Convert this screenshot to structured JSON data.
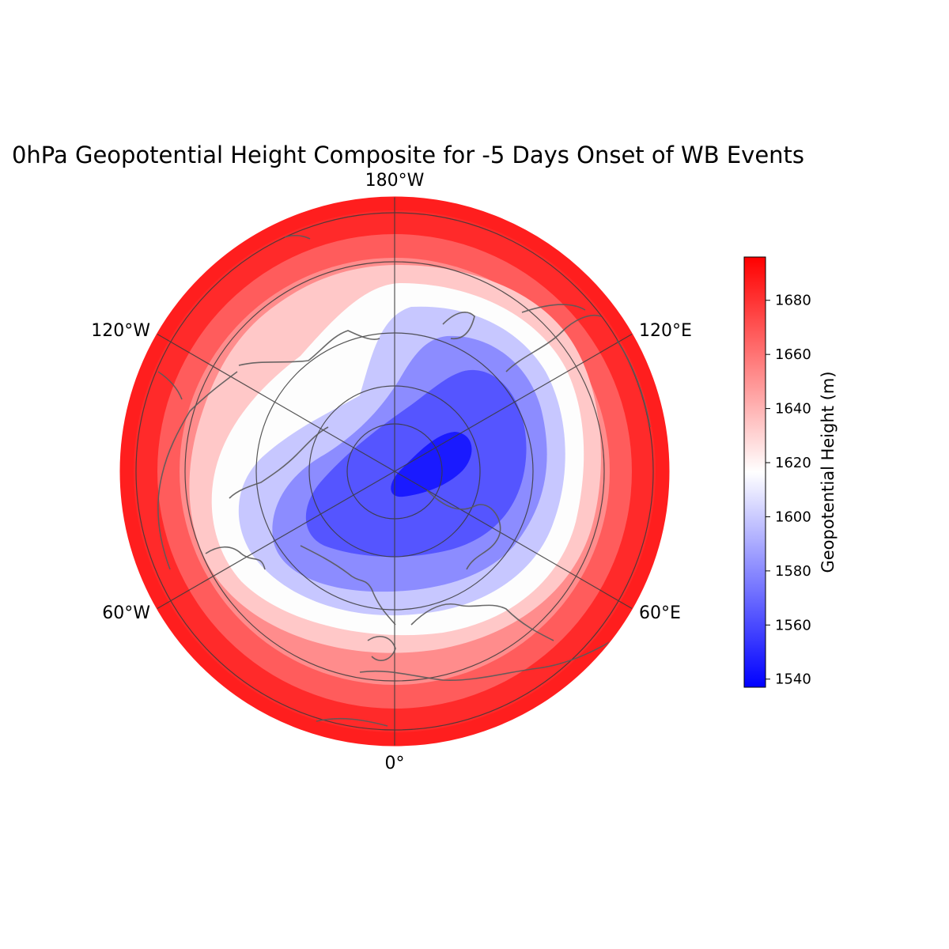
{
  "title": "0hPa Geopotential Height Composite for -5 Days Onset of WB Events",
  "map": {
    "projection": "north-polar-stereographic",
    "longitude_labels": [
      "180°W",
      "120°E",
      "60°E",
      "0°",
      "60°W",
      "120°W"
    ],
    "parallels_deg": [
      80,
      70,
      60,
      50,
      40,
      30
    ],
    "meridians_deg": [
      0,
      60,
      120,
      180,
      240,
      300
    ]
  },
  "field": {
    "variable": "geopotential height",
    "units": "m",
    "contour_levels": [
      1540,
      1552,
      1564,
      1576,
      1588,
      1600,
      1612,
      1624,
      1636,
      1648,
      1660,
      1672,
      1684,
      1696
    ],
    "minimum_center": "North Pole offset toward Siberia (~85°N, 120°E)",
    "minimum_value_approx": 1546,
    "rim_value_approx": 1690
  },
  "colorbar": {
    "label": "Geopotential Height (m)",
    "ticks": [
      "1680",
      "1660",
      "1640",
      "1620",
      "1600",
      "1580",
      "1560",
      "1540"
    ],
    "tick_values": [
      1680,
      1660,
      1640,
      1620,
      1600,
      1580,
      1560,
      1540
    ],
    "min": 1537,
    "max": 1696,
    "colormap": "bwr",
    "low_color": "#0000ff",
    "mid_color": "#ffffff",
    "high_color": "#ff0000"
  }
}
